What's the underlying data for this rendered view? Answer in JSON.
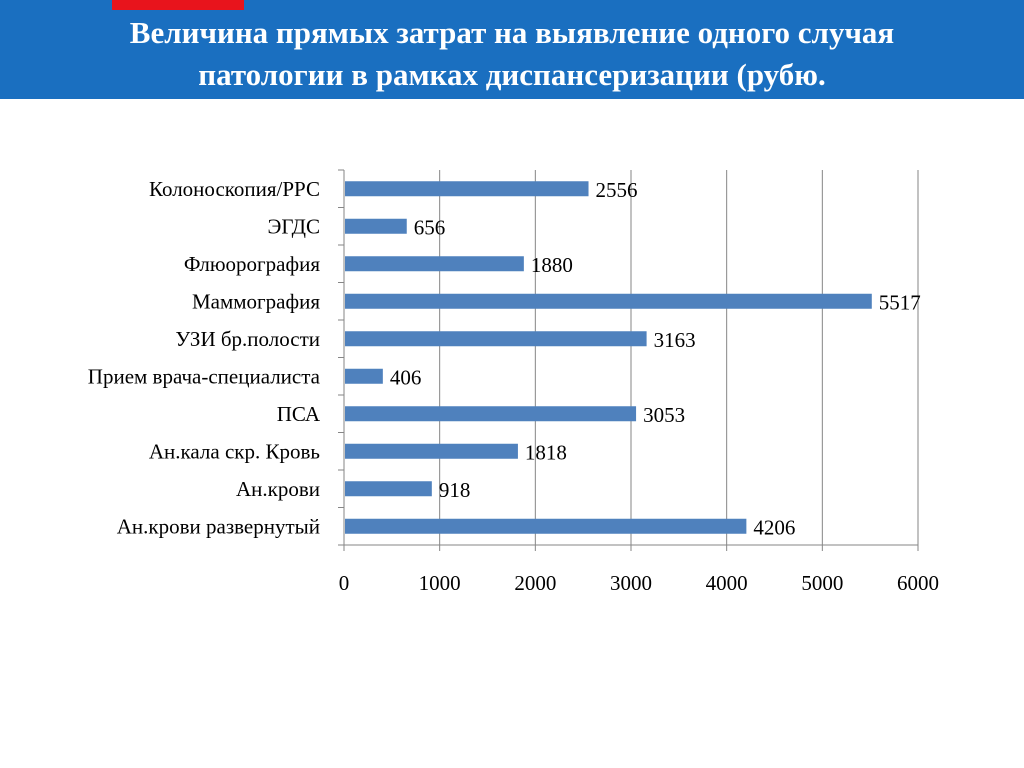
{
  "title": {
    "line1": "Величина прямых затрат на выявление одного случая",
    "line2": "патологии в рамках диспансеризации (рубю."
  },
  "colors": {
    "banner": "#1a6fc0",
    "accent": "#e8141c",
    "bar": "#4f81bd",
    "grid": "#868686"
  },
  "chart_data": {
    "type": "bar",
    "orientation": "horizontal",
    "categories": [
      "Колоноскопия/РРС",
      "ЭГДС",
      "Флюорография",
      "Маммография",
      "УЗИ бр.полости",
      "Прием врача-специалиста",
      "ПСА",
      "Ан.кала скр. Кровь",
      "Ан.крови",
      "Ан.крови развернутый"
    ],
    "values": [
      2556,
      656,
      1880,
      5517,
      3163,
      406,
      3053,
      1818,
      918,
      4206
    ],
    "xlim": [
      0,
      6000
    ],
    "xticks": [
      0,
      1000,
      2000,
      3000,
      4000,
      5000,
      6000
    ],
    "grid": true,
    "data_labels": true
  }
}
